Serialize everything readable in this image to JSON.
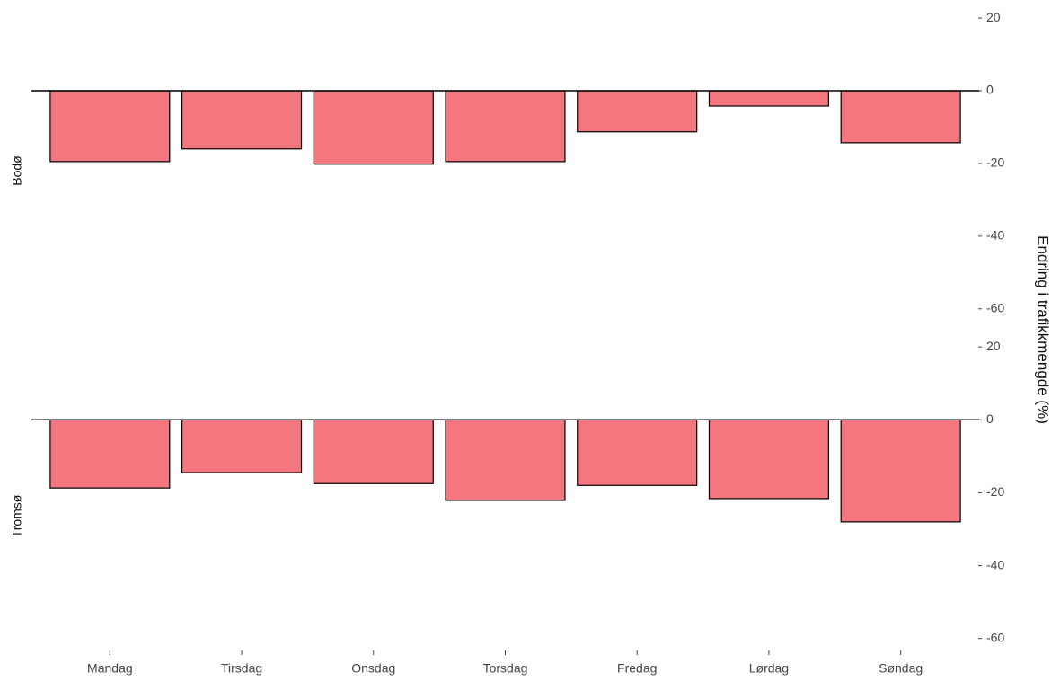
{
  "chart_data": {
    "type": "bar",
    "y_label": "Endring i trafikkmengde (%)",
    "categories": [
      "Mandag",
      "Tirsdag",
      "Onsdag",
      "Torsdag",
      "Fredag",
      "Lørdag",
      "Søndag"
    ],
    "series": [
      {
        "name": "Bodø",
        "color": "#f4777f",
        "values": [
          -19.5,
          -16,
          -20.2,
          -19.5,
          -11.3,
          -4.2,
          -14.3
        ]
      },
      {
        "name": "Tromsø",
        "color": "#f4777f",
        "values": [
          -18.7,
          -14.5,
          -17.5,
          -22.1,
          -18,
          -21.6,
          -28
        ]
      }
    ],
    "ylim": [
      -65,
      22
    ],
    "yticks": [
      20,
      0,
      -20,
      -40,
      -60
    ]
  }
}
